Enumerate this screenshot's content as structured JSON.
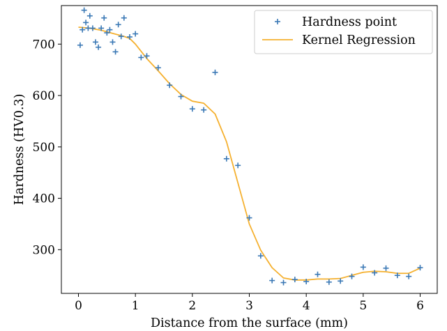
{
  "chart_data": {
    "type": "scatter",
    "xlabel": "Distance from the surface (mm)",
    "ylabel": "Hardness (HV0.3)",
    "xlim": [
      -0.3,
      6.3
    ],
    "ylim": [
      215,
      775
    ],
    "xticks": [
      0,
      1,
      2,
      3,
      4,
      5,
      6
    ],
    "yticks": [
      300,
      400,
      500,
      600,
      700
    ],
    "grid": false,
    "legend_position": "top-right",
    "series": [
      {
        "name": "Hardness point",
        "kind": "scatter",
        "marker": "+",
        "color": "#3a78b5",
        "points": [
          [
            0.03,
            698
          ],
          [
            0.07,
            728
          ],
          [
            0.1,
            766
          ],
          [
            0.13,
            742
          ],
          [
            0.17,
            731
          ],
          [
            0.2,
            755
          ],
          [
            0.25,
            731
          ],
          [
            0.3,
            704
          ],
          [
            0.35,
            694
          ],
          [
            0.4,
            731
          ],
          [
            0.45,
            751
          ],
          [
            0.5,
            722
          ],
          [
            0.55,
            728
          ],
          [
            0.6,
            704
          ],
          [
            0.65,
            685
          ],
          [
            0.7,
            738
          ],
          [
            0.75,
            715
          ],
          [
            0.8,
            751
          ],
          [
            0.9,
            714
          ],
          [
            1.0,
            720
          ],
          [
            1.1,
            674
          ],
          [
            1.2,
            677
          ],
          [
            1.4,
            654
          ],
          [
            1.6,
            620
          ],
          [
            1.8,
            598
          ],
          [
            2.0,
            574
          ],
          [
            2.2,
            572
          ],
          [
            2.4,
            645
          ],
          [
            2.6,
            477
          ],
          [
            2.8,
            464
          ],
          [
            3.0,
            362
          ],
          [
            3.2,
            288
          ],
          [
            3.4,
            240
          ],
          [
            3.6,
            236
          ],
          [
            3.8,
            242
          ],
          [
            4.0,
            238
          ],
          [
            4.2,
            252
          ],
          [
            4.4,
            237
          ],
          [
            4.6,
            239
          ],
          [
            4.8,
            248
          ],
          [
            5.0,
            266
          ],
          [
            5.2,
            255
          ],
          [
            5.4,
            264
          ],
          [
            5.6,
            250
          ],
          [
            5.8,
            248
          ],
          [
            6.0,
            265
          ]
        ]
      },
      {
        "name": "Kernel Regression",
        "kind": "line",
        "color": "#f5b02e",
        "points": [
          [
            0.0,
            733
          ],
          [
            0.2,
            731
          ],
          [
            0.4,
            727
          ],
          [
            0.6,
            721
          ],
          [
            0.8,
            715
          ],
          [
            0.9,
            711
          ],
          [
            1.0,
            700
          ],
          [
            1.2,
            672
          ],
          [
            1.4,
            648
          ],
          [
            1.6,
            623
          ],
          [
            1.8,
            602
          ],
          [
            2.0,
            589
          ],
          [
            2.2,
            585
          ],
          [
            2.4,
            564
          ],
          [
            2.6,
            510
          ],
          [
            2.8,
            430
          ],
          [
            3.0,
            350
          ],
          [
            3.2,
            299
          ],
          [
            3.4,
            265
          ],
          [
            3.6,
            245
          ],
          [
            3.8,
            241
          ],
          [
            4.0,
            241
          ],
          [
            4.2,
            243
          ],
          [
            4.4,
            243
          ],
          [
            4.6,
            244
          ],
          [
            4.8,
            250
          ],
          [
            5.0,
            256
          ],
          [
            5.2,
            258
          ],
          [
            5.4,
            257
          ],
          [
            5.6,
            254
          ],
          [
            5.8,
            254
          ],
          [
            6.0,
            264
          ]
        ]
      }
    ]
  }
}
